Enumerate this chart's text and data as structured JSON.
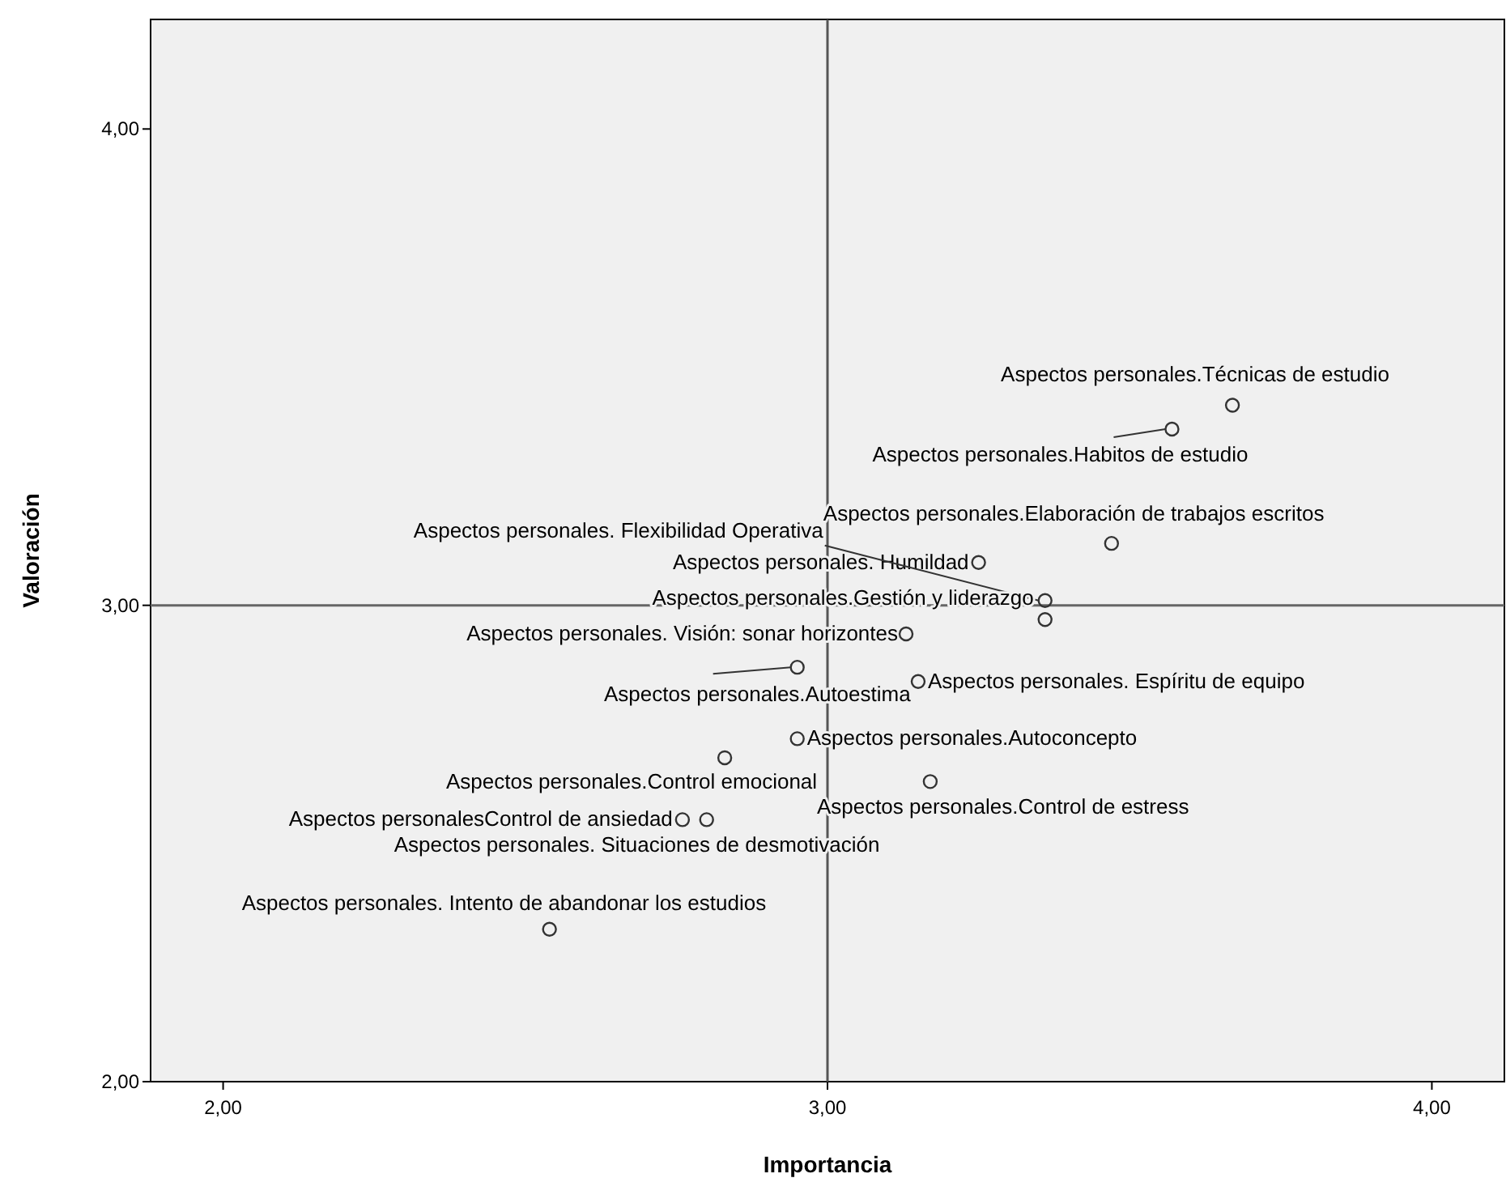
{
  "chart_data": {
    "type": "scatter",
    "xlabel": "Importancia",
    "ylabel": "Valoración",
    "x": [
      3.67,
      3.57,
      3.47,
      3.25,
      3.36,
      3.36,
      3.13,
      2.95,
      3.15,
      2.95,
      2.83,
      3.17,
      2.76,
      2.8,
      2.54
    ],
    "series": [
      {
        "color": "#333333",
        "values": [
          3.42,
          3.37,
          3.13,
          3.09,
          3.01,
          2.97,
          2.94,
          2.87,
          2.84,
          2.72,
          2.68,
          2.63,
          2.55,
          2.55,
          2.32
        ]
      }
    ],
    "marker": "circle",
    "grid": false,
    "xlim": [
      1.88,
      4.12
    ],
    "ylim": [
      2,
      4.23
    ],
    "xticks": [
      {
        "value": 2,
        "label": "2,00"
      },
      {
        "value": 3,
        "label": "3,00"
      },
      {
        "value": 4,
        "label": "4,00"
      }
    ],
    "yticks": [
      {
        "value": 2,
        "label": "2,00"
      },
      {
        "value": 3,
        "label": "3,00"
      },
      {
        "value": 4,
        "label": "4,00"
      }
    ],
    "ref_lines": [
      {
        "axis": "x",
        "value": 3,
        "color": "#555555"
      },
      {
        "axis": "y",
        "value": 3,
        "color": "#666666"
      }
    ],
    "annotations": [
      {
        "text": "Aspectos personales.Técnicas de estudio",
        "x": 3.67,
        "y": 3.42
      },
      {
        "text": "Aspectos personales.Habitos de estudio",
        "x": 3.57,
        "y": 3.37
      },
      {
        "text": "Aspectos personales.Elaboración de trabajos escritos",
        "x": 3.47,
        "y": 3.13
      },
      {
        "text": "Aspectos personales. Humildad",
        "x": 3.25,
        "y": 3.09
      },
      {
        "text": "Aspectos personales. Flexibilidad Operativa",
        "x": 3.36,
        "y": 3.01
      },
      {
        "text": "Aspectos personales.Gestión y liderazgo",
        "x": 3.36,
        "y": 2.97
      },
      {
        "text": "Aspectos personales. Visión: sonar horizontes",
        "x": 3.13,
        "y": 2.94
      },
      {
        "text": "Aspectos personales.Autoestima",
        "x": 2.95,
        "y": 2.87
      },
      {
        "text": "Aspectos personales. Espíritu de  equipo",
        "x": 3.15,
        "y": 2.84
      },
      {
        "text": "Aspectos personales.Autoconcepto",
        "x": 2.95,
        "y": 2.72
      },
      {
        "text": "Aspectos personales.Control emocional",
        "x": 2.83,
        "y": 2.68
      },
      {
        "text": "Aspectos personales.Control de estress",
        "x": 3.17,
        "y": 2.63
      },
      {
        "text": "Aspectos personalesControl de ansiedad",
        "x": 2.76,
        "y": 2.55
      },
      {
        "text": "Aspectos personales. Situaciones de desmotivación",
        "x": 2.8,
        "y": 2.55
      },
      {
        "text": "Aspectos personales. Intento de abandonar los estudios",
        "x": 2.54,
        "y": 2.32
      }
    ]
  }
}
